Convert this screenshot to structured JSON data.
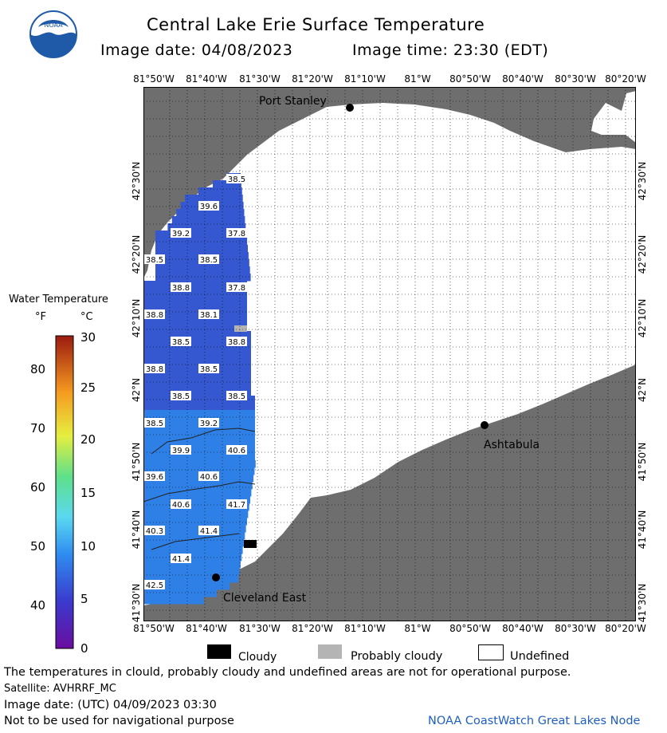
{
  "header": {
    "title": "Central Lake Erie Surface Temperature",
    "image_date_label": "Image date: 04/08/2023",
    "image_time_label": "Image time: 23:30 (EDT)"
  },
  "logo": {
    "text": "NOAA",
    "color": "#1e5aa8"
  },
  "map": {
    "lon_labels": [
      "81°50'W",
      "81°40'W",
      "81°30'W",
      "81°20'W",
      "81°10'W",
      "81°W",
      "80°50'W",
      "80°40'W",
      "80°30'W",
      "80°20'W"
    ],
    "lat_labels": [
      "42°30'N",
      "42°20'N",
      "42°10'N",
      "42°N",
      "41°50'N",
      "41°40'N",
      "41°30'N"
    ],
    "places": {
      "port_stanley": "Port Stanley",
      "ashtabula": "Ashtabula",
      "cleveland_east": "Cleveland East"
    },
    "temperature_labels": [
      "38.5",
      "39.6",
      "39.2",
      "37.8",
      "38.5",
      "38.5",
      "38.8",
      "37.8",
      "38.8",
      "38.1",
      "38.5",
      "38.8",
      "38.8",
      "38.5",
      "38.5",
      "38.5",
      "38.5",
      "39.2",
      "39.9",
      "40.6",
      "39.6",
      "40.6",
      "40.6",
      "41.7",
      "40.3",
      "41.4",
      "41.4",
      "42.5"
    ],
    "colors": {
      "land": "#6e6e6e",
      "water_warm": "#2e80e6",
      "water_cold": "#3558d0",
      "undefined": "#ffffff"
    }
  },
  "legend": {
    "title": "Water Temperature",
    "unit_f": "°F",
    "unit_c": "°C",
    "f_ticks": [
      "80",
      "70",
      "60",
      "50",
      "40"
    ],
    "c_ticks": [
      "30",
      "25",
      "20",
      "15",
      "10",
      "5",
      "0"
    ]
  },
  "key": {
    "cloudy": "Cloudy",
    "probably_cloudy": "Probably cloudy",
    "undefined": "Undefined"
  },
  "footer": {
    "disclaimer": "The temperatures in clould, probably cloudy and undefined areas are not for operational purpose.",
    "satellite": "Satellite: AVHRRF_MC",
    "utc_date": "Image date: (UTC) 04/09/2023  03:30",
    "nav_warning": "Not to be used for navigational purpose",
    "node": "NOAA CoastWatch Great Lakes Node"
  }
}
